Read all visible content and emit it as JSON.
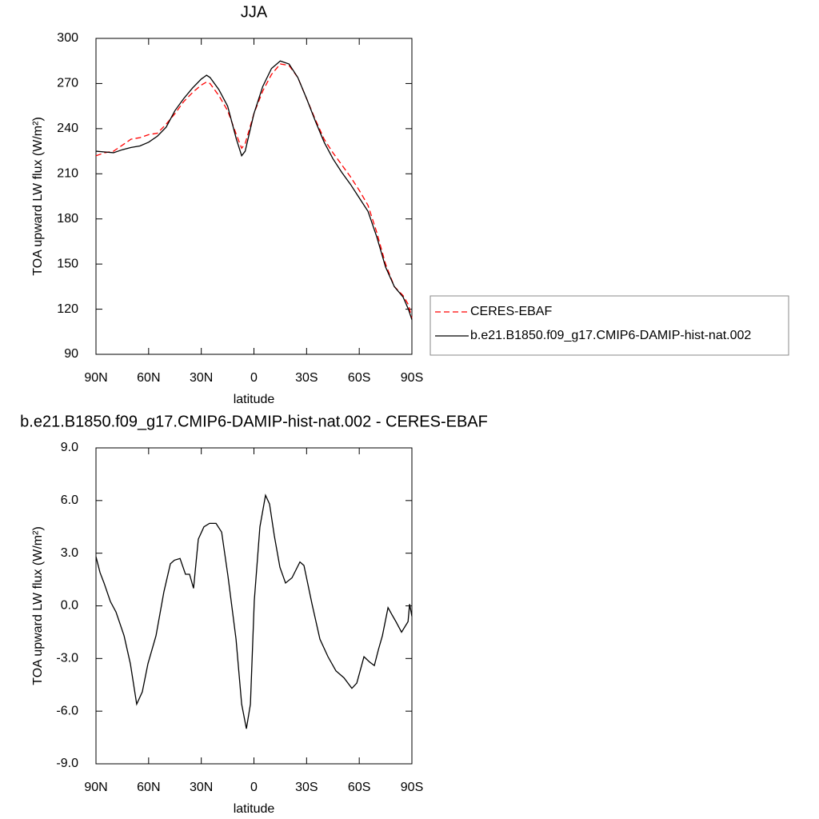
{
  "chart_data": [
    {
      "type": "line",
      "title": "JJA",
      "xlabel": "latitude",
      "ylabel": "TOA upward LW flux (W/m²)",
      "x": [
        90,
        85,
        80,
        75,
        70,
        65,
        60,
        55,
        50,
        45,
        40,
        35,
        30,
        27,
        25,
        20,
        15,
        10,
        7,
        5,
        0,
        -5,
        -10,
        -15,
        -20,
        -25,
        -30,
        -35,
        -40,
        -45,
        -50,
        -55,
        -60,
        -65,
        -70,
        -75,
        -80,
        -85,
        -88,
        -90
      ],
      "series": [
        {
          "name": "CERES-EBAF",
          "color": "#ff0000",
          "line_style": "dashed",
          "values": [
            222,
            224,
            225,
            229,
            233,
            234,
            236,
            237,
            243,
            250,
            258,
            264,
            269,
            271,
            270,
            262,
            252,
            236,
            227,
            230,
            250,
            265,
            276,
            283,
            282,
            274,
            260,
            246,
            233,
            224,
            216,
            208,
            199,
            189,
            171,
            150,
            135,
            129,
            123,
            114
          ]
        },
        {
          "name": "b.e21.B1850.f09_g17.CMIP6-DAMIP-hist-nat.002",
          "color": "#000000",
          "line_style": "solid",
          "values": [
            225,
            224.5,
            224,
            226,
            227.5,
            228.5,
            231,
            235,
            241,
            252,
            260,
            267,
            273,
            275.5,
            274,
            266,
            255,
            233,
            222,
            225,
            250,
            268,
            280,
            285,
            283,
            274,
            260,
            245,
            231,
            220,
            211,
            203,
            194,
            185,
            168,
            148,
            135,
            128,
            120,
            113
          ]
        }
      ],
      "xlim": [
        90,
        -90
      ],
      "xticks": [
        {
          "value": 90,
          "label": "90N"
        },
        {
          "value": 60,
          "label": "60N"
        },
        {
          "value": 30,
          "label": "30N"
        },
        0,
        {
          "value": -30,
          "label": "30S"
        },
        {
          "value": -60,
          "label": "60S"
        },
        {
          "value": -90,
          "label": "90S"
        }
      ],
      "ylim": [
        90,
        300
      ],
      "yticks": [
        90,
        120,
        150,
        180,
        210,
        240,
        270,
        300
      ],
      "legend": "right"
    },
    {
      "type": "line",
      "title": "b.e21.B1850.f09_g17.CMIP6-DAMIP-hist-nat.002 - CERES-EBAF",
      "xlabel": "latitude",
      "ylabel": "TOA upward LW flux (W/m²)",
      "x": [
        90,
        87.7,
        85.4,
        81.8,
        78.6,
        74,
        70.4,
        66.8,
        63.6,
        60.4,
        55.8,
        51.3,
        47.6,
        45.3,
        42.1,
        39,
        36.7,
        34.4,
        31.7,
        28.5,
        25.3,
        21.6,
        18.4,
        14.8,
        10.2,
        7,
        4.3,
        2,
        -0.2,
        -3.4,
        -6.6,
        -8.9,
        -11.6,
        -14.8,
        -18,
        -21.7,
        -26.2,
        -28.5,
        -33.1,
        -37.6,
        -42.2,
        -46.7,
        -51.3,
        -55.8,
        -58.6,
        -62.7,
        -65.9,
        -68.6,
        -70.9,
        -73.2,
        -76.4,
        -78.6,
        -80.9,
        -84.1,
        -87.8,
        -88.7,
        -90
      ],
      "values": [
        2.8,
        1.9,
        1.3,
        0.25,
        -0.35,
        -1.7,
        -3.3,
        -5.6,
        -4.9,
        -3.3,
        -1.7,
        0.8,
        2.4,
        2.6,
        2.7,
        1.8,
        1.8,
        1.0,
        3.8,
        4.5,
        4.7,
        4.7,
        4.2,
        1.7,
        -1.9,
        -5.6,
        -7.0,
        -5.6,
        0.3,
        4.5,
        6.3,
        5.8,
        4.0,
        2.2,
        1.3,
        1.6,
        2.5,
        2.3,
        0.1,
        -1.9,
        -2.9,
        -3.7,
        -4.1,
        -4.7,
        -4.4,
        -2.9,
        -3.2,
        -3.4,
        -2.5,
        -1.7,
        -0.1,
        -0.5,
        -0.9,
        -1.5,
        -0.9,
        0.1,
        -0.6
      ],
      "color": "#000000",
      "xlim": [
        90,
        -90
      ],
      "xticks": [
        {
          "value": 90,
          "label": "90N"
        },
        {
          "value": 60,
          "label": "60N"
        },
        {
          "value": 30,
          "label": "30N"
        },
        0,
        {
          "value": -30,
          "label": "30S"
        },
        {
          "value": -60,
          "label": "60S"
        },
        {
          "value": -90,
          "label": "90S"
        }
      ],
      "ylim": [
        -9,
        9
      ],
      "yticks": [
        {
          "value": -9,
          "label": "-9.0"
        },
        {
          "value": -6,
          "label": "-6.0"
        },
        {
          "value": -3,
          "label": "-3.0"
        },
        {
          "value": 0,
          "label": "0.0"
        },
        {
          "value": 3,
          "label": "3.0"
        },
        {
          "value": 6,
          "label": "6.0"
        },
        {
          "value": 9,
          "label": "9.0"
        }
      ]
    }
  ]
}
